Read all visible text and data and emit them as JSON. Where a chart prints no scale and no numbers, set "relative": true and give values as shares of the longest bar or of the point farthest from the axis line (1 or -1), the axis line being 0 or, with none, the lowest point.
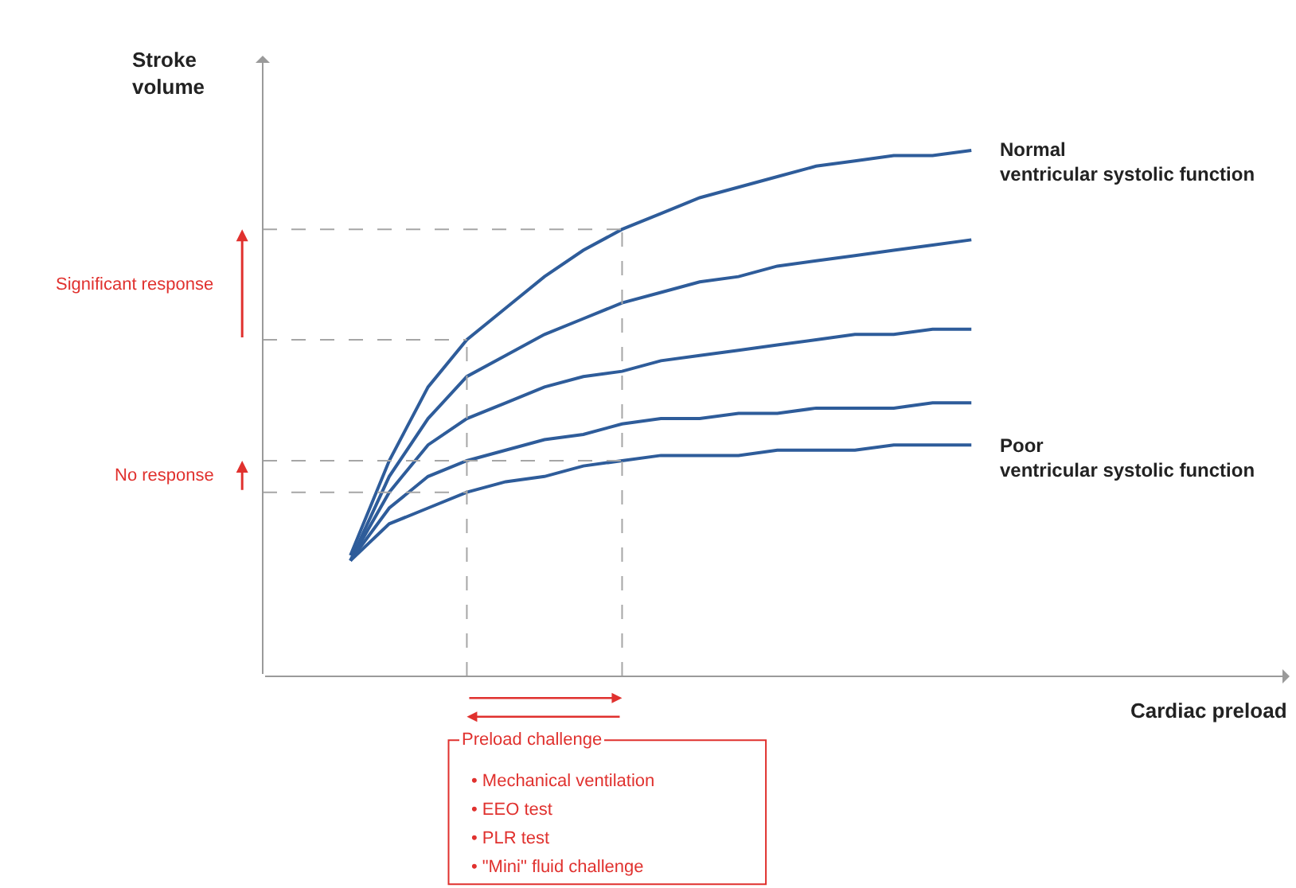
{
  "chart_data": {
    "type": "line",
    "relative": true,
    "categories": [
      null,
      null,
      null,
      null,
      null,
      null,
      null,
      null,
      null,
      null,
      null,
      null,
      null,
      null,
      null,
      null,
      null
    ],
    "series": [
      {
        "name": "Normal ventricular systolic function",
        "color": "#2e5c9a",
        "values": [
          0.23,
          0.41,
          0.55,
          0.64,
          0.7,
          0.76,
          0.81,
          0.85,
          0.88,
          0.91,
          0.93,
          0.95,
          0.97,
          0.98,
          0.99,
          0.99,
          1
        ]
      },
      {
        "color": "#2e5c9a",
        "values": [
          0.22,
          0.38,
          0.49,
          0.57,
          0.61,
          0.65,
          0.68,
          0.71,
          0.73,
          0.75,
          0.76,
          0.78,
          0.79,
          0.8,
          0.81,
          0.82,
          0.83
        ]
      },
      {
        "color": "#2e5c9a",
        "values": [
          0.22,
          0.35,
          0.44,
          0.49,
          0.52,
          0.55,
          0.57,
          0.58,
          0.6,
          0.61,
          0.62,
          0.63,
          0.64,
          0.65,
          0.65,
          0.66,
          0.66
        ]
      },
      {
        "color": "#2e5c9a",
        "values": [
          0.22,
          0.32,
          0.38,
          0.41,
          0.43,
          0.45,
          0.46,
          0.48,
          0.49,
          0.49,
          0.5,
          0.5,
          0.51,
          0.51,
          0.51,
          0.52,
          0.52
        ]
      },
      {
        "name": "Poor ventricular systolic function",
        "color": "#2e5c9a",
        "values": [
          0.22,
          0.29,
          0.32,
          0.35,
          0.37,
          0.38,
          0.4,
          0.41,
          0.42,
          0.42,
          0.42,
          0.43,
          0.43,
          0.43,
          0.44,
          0.44,
          0.44
        ]
      }
    ],
    "ref_lines": [
      {
        "axis": "y",
        "value": 0.85,
        "color": "#a6a6a6",
        "line_style": "dashed"
      },
      {
        "axis": "y",
        "value": 0.64,
        "color": "#a6a6a6",
        "line_style": "dashed"
      },
      {
        "axis": "y",
        "value": 0.41,
        "color": "#a6a6a6",
        "line_style": "dashed"
      },
      {
        "axis": "y",
        "value": 0.35,
        "color": "#a6a6a6",
        "line_style": "dashed"
      }
    ],
    "annotations": [
      "Stroke volume",
      "Significant response",
      "No response",
      "Cardiac preload",
      "Preload challenge",
      "• Mechanical ventilation",
      "• EEO test",
      "• PLR test",
      "• \"Mini\" fluid challenge"
    ],
    "marker": "none",
    "line_style": "solid",
    "legend": false
  }
}
